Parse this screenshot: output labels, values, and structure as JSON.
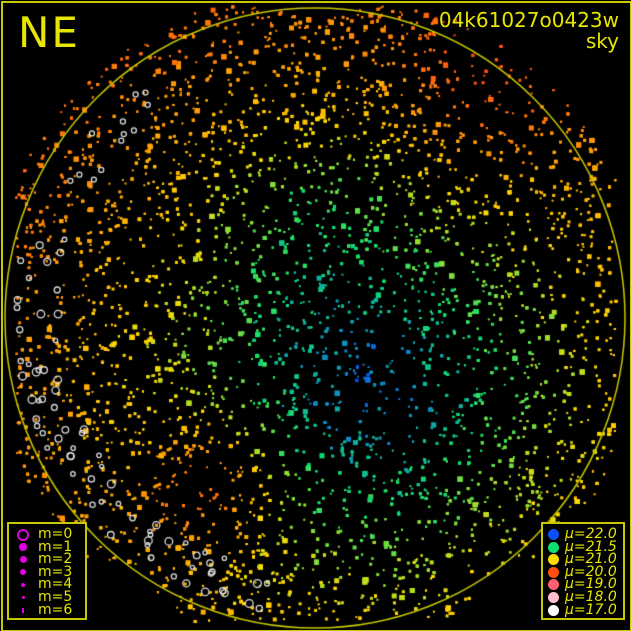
{
  "header": {
    "direction_label": "NE",
    "frame_id": "04k61027o0423w",
    "plot_kind": "sky"
  },
  "colors": {
    "frame": "#c8c800",
    "text": "#e6e600",
    "magnitude_symbol": "#e000e0"
  },
  "magnitude_legend": [
    {
      "label": "m=0",
      "symbol": "ring"
    },
    {
      "label": "m=1",
      "symbol": "dot"
    },
    {
      "label": "m=2",
      "symbol": "dot"
    },
    {
      "label": "m=3",
      "symbol": "dot"
    },
    {
      "label": "m=4",
      "symbol": "dot"
    },
    {
      "label": "m=5",
      "symbol": "dot"
    },
    {
      "label": "m=6",
      "symbol": "tick"
    }
  ],
  "brightness_legend": [
    {
      "label": "μ=22.0",
      "mu": 22.0,
      "color": "#0a50ff"
    },
    {
      "label": "μ=21.5",
      "mu": 21.5,
      "color": "#10e070"
    },
    {
      "label": "μ=21.0",
      "mu": 21.0,
      "color": "#ffdc00"
    },
    {
      "label": "μ=20.0",
      "mu": 20.0,
      "color": "#ff5010"
    },
    {
      "label": "μ=19.0",
      "mu": 19.0,
      "color": "#ff6070"
    },
    {
      "label": "μ=18.0",
      "mu": 18.0,
      "color": "#ffc0cc"
    },
    {
      "label": "μ=17.0",
      "mu": 17.0,
      "color": "#ffffff"
    }
  ]
}
